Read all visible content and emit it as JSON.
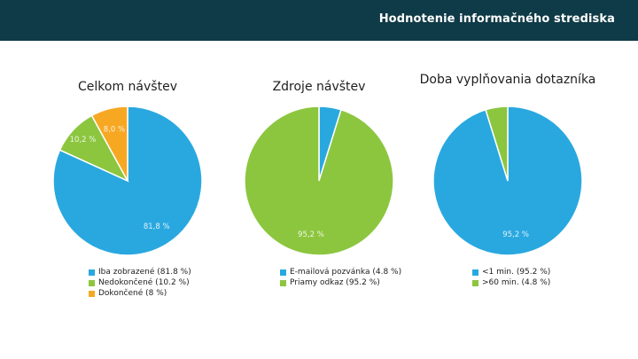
{
  "header": {
    "title": "Hodnotenie informačného strediska"
  },
  "chart_data": [
    {
      "type": "pie",
      "title": "Celkom návštev",
      "categories": [
        "Iba zobrazené",
        "Nedokončené",
        "Dokončené"
      ],
      "values": [
        81.8,
        10.2,
        8.0
      ],
      "labels": [
        "81,8 %",
        "10,2 %",
        "8,0 %"
      ],
      "legend": [
        "Iba zobrazené (81.8 %)",
        "Nedokončené (10.2 %)",
        "Dokončené (8 %)"
      ],
      "colors": [
        "#29a8e0",
        "#8cc63f",
        "#f7a823"
      ]
    },
    {
      "type": "pie",
      "title": "Zdroje návštev",
      "categories": [
        "E-mailová pozvánka",
        "Priamy odkaz"
      ],
      "values": [
        4.8,
        95.2
      ],
      "labels": [
        "",
        "95,2 %"
      ],
      "legend": [
        "E-mailová pozvánka (4.8 %)",
        "Priamy odkaz (95.2 %)"
      ],
      "colors": [
        "#29a8e0",
        "#8cc63f"
      ]
    },
    {
      "type": "pie",
      "title": "Doba vyplňovania dotazníka",
      "categories": [
        "<1 min.",
        ">60 min."
      ],
      "values": [
        95.2,
        4.8
      ],
      "labels": [
        "95,2 %",
        ""
      ],
      "legend": [
        "<1 min. (95.2 %)",
        ">60 min. (4.8 %)"
      ],
      "colors": [
        "#29a8e0",
        "#8cc63f"
      ]
    }
  ]
}
